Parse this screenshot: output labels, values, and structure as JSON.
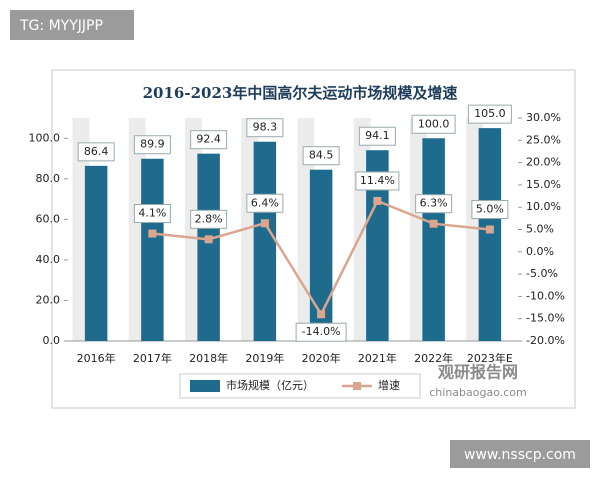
{
  "header_badge": "TG: MYYJJPP",
  "footer_badge": "www.nsscp.com",
  "watermark": {
    "name": "观研报告网",
    "url": "chinabaogao.com"
  },
  "chart_data": {
    "type": "bar-line",
    "title": "2016-2023年中国高尔夫运动市场规模及增速",
    "categories": [
      "2016年",
      "2017年",
      "2018年",
      "2019年",
      "2020年",
      "2021年",
      "2022年",
      "2023年E"
    ],
    "series": [
      {
        "name": "市场规模（亿元）",
        "type": "bar",
        "color": "#1f6b8e",
        "values": [
          86.4,
          89.9,
          92.4,
          98.3,
          84.5,
          94.1,
          100.0,
          105.0
        ],
        "value_labels": [
          "86.4",
          "89.9",
          "92.4",
          "98.3",
          "84.5",
          "94.1",
          "100.0",
          "105.0"
        ]
      },
      {
        "name": "增速",
        "type": "line",
        "axis": "y2",
        "color": "#dba68f",
        "values": [
          null,
          4.1,
          2.8,
          6.4,
          -14.0,
          11.4,
          6.3,
          5.0
        ],
        "value_labels": [
          null,
          "4.1%",
          "2.8%",
          "6.4%",
          "-14.0%",
          "11.4%",
          "6.3%",
          "5.0%"
        ]
      }
    ],
    "ylim": [
      0,
      110
    ],
    "yticks": [
      {
        "value": 0,
        "label": "0.0"
      },
      {
        "value": 20,
        "label": "20.0"
      },
      {
        "value": 40,
        "label": "40.0"
      },
      {
        "value": 60,
        "label": "60.0"
      },
      {
        "value": 80,
        "label": "80.0"
      },
      {
        "value": 100,
        "label": "100.0"
      }
    ],
    "y2lim": [
      -20,
      30
    ],
    "y2ticks": [
      {
        "value": -20,
        "label": "-20.0%"
      },
      {
        "value": -15,
        "label": "-15.0%"
      },
      {
        "value": -10,
        "label": "-10.0%"
      },
      {
        "value": -5,
        "label": "-5.0%"
      },
      {
        "value": 0,
        "label": "0.0%"
      },
      {
        "value": 5,
        "label": "5.0%"
      },
      {
        "value": 10,
        "label": "10.0%"
      },
      {
        "value": 15,
        "label": "15.0%"
      },
      {
        "value": 20,
        "label": "20.0%"
      },
      {
        "value": 25,
        "label": "25.0%"
      },
      {
        "value": 30,
        "label": "30.0%"
      }
    ],
    "legend": "bottom"
  }
}
